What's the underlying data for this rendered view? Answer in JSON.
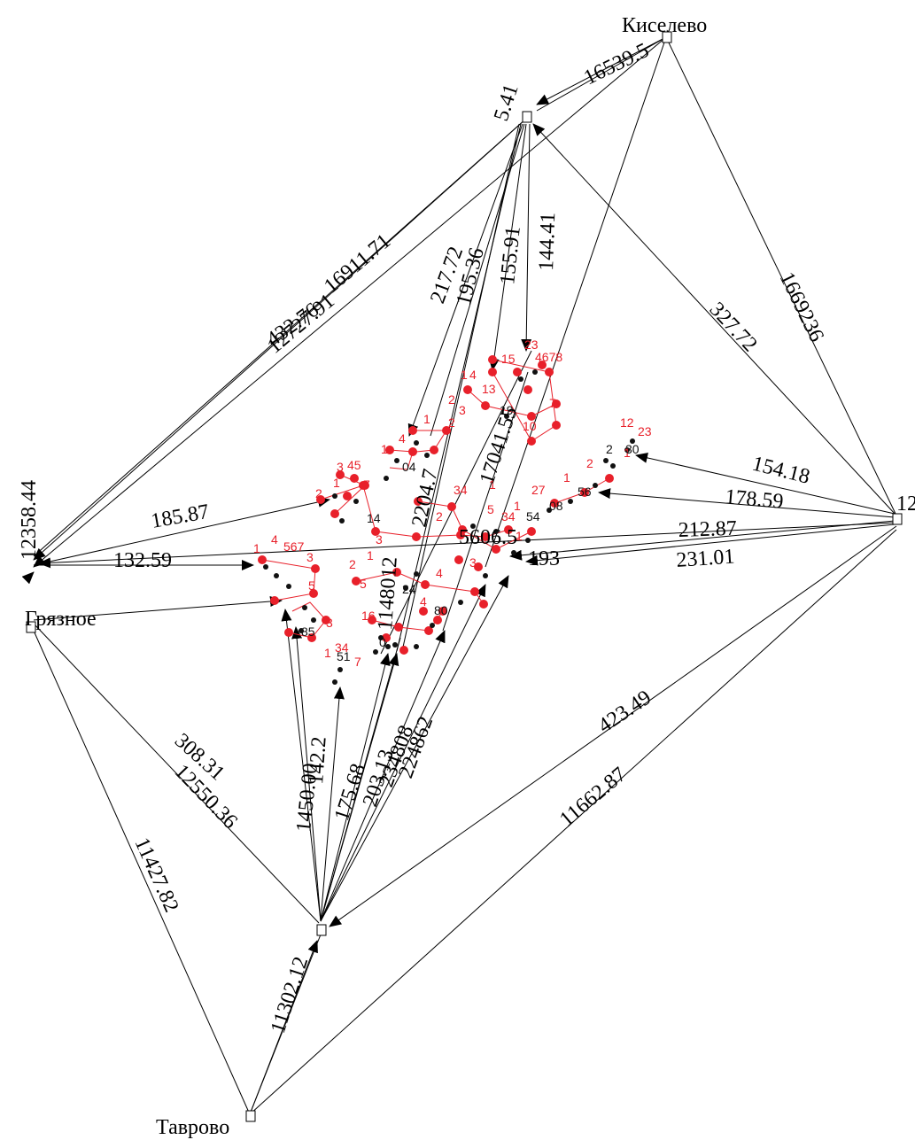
{
  "places": {
    "kiselevo": "Киселево",
    "gryaznoe": "Грязное",
    "tavrovo": "Таврово"
  },
  "edge_labels": {
    "kis_node5": "16539.5",
    "node5_top": "5.41",
    "ne_327": "327.72",
    "ne_16692": "1669236",
    "e_154": "154.18",
    "e_178": "178.59",
    "e_212": "212.87",
    "e_231": "231.01",
    "w_432": "432.76",
    "w_12727": "12727.91",
    "w_16911": "16911.71",
    "w_185": "185.87",
    "w_132": "132.59",
    "w_12358": "12358.44",
    "n_217": "217.72",
    "n_195": "195.36",
    "n_155": "155.91",
    "n_144": "144.41",
    "c_17041": "17041.55",
    "c_1148": "1148012",
    "c_2204": "2204.7",
    "s_308": "308.31",
    "s_12550": "12550.36",
    "s_11427": "11427.82",
    "s_175": "175.68",
    "s_203": "203.13",
    "s_234": "234808",
    "s_22482": "224862",
    "s_11302": "11302.12",
    "s_1450": "1450.00",
    "s_142": "142.2",
    "se_423": "423.49",
    "se_11662": "11662.87",
    "right_node": "12",
    "mid_5606": "5606.5",
    "mid_193": "193",
    "c_14": "14",
    "c_24": "24"
  },
  "colors": {
    "edge": "#000000",
    "cluster_red": "#e8202a",
    "cluster_black": "#111111"
  }
}
